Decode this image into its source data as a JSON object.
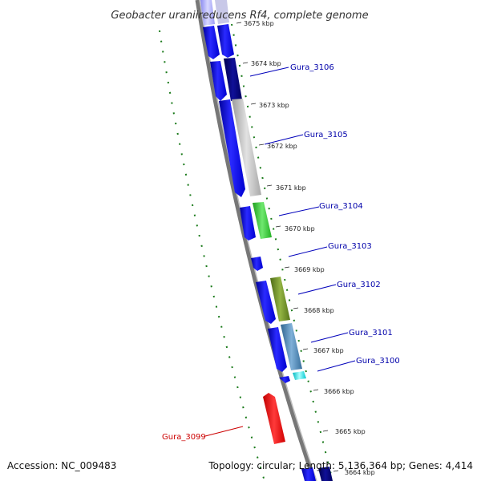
{
  "title": "Geobacter uraniireducens Rf4, complete genome",
  "accession_text": "Accession: NC_009483",
  "summary_text": "Topology: circular; Length: 5,136,364 bp; Genes: 4,414",
  "tick_labels": [
    {
      "kbp": 3675,
      "label": "3675 kbp"
    },
    {
      "kbp": 3674,
      "label": "3674 kbp"
    },
    {
      "kbp": 3673,
      "label": "3673 kbp"
    },
    {
      "kbp": 3672,
      "label": "3672 kbp"
    },
    {
      "kbp": 3671,
      "label": "3671 kbp"
    },
    {
      "kbp": 3670,
      "label": "3670 kbp"
    },
    {
      "kbp": 3669,
      "label": "3669 kbp"
    },
    {
      "kbp": 3668,
      "label": "3668 kbp"
    },
    {
      "kbp": 3667,
      "label": "3667 kbp"
    },
    {
      "kbp": 3666,
      "label": "3666 kbp"
    },
    {
      "kbp": 3665,
      "label": "3665 kbp"
    },
    {
      "kbp": 3664,
      "label": "3664 kbp"
    }
  ],
  "genes": [
    {
      "name": "Gura_3106",
      "color": "#000080"
    },
    {
      "name": "Gura_3105",
      "color": "#bdbdbd"
    },
    {
      "name": "Gura_3104",
      "color": "#33cc33"
    },
    {
      "name": "Gura_3103",
      "color": "#0000ee"
    },
    {
      "name": "Gura_3102",
      "color": "#6b8e23"
    },
    {
      "name": "Gura_3101",
      "color": "#4682b4"
    },
    {
      "name": "Gura_3100",
      "color": "#00e5ee"
    },
    {
      "name": "Gura_3099",
      "color": "#ff0000"
    }
  ]
}
